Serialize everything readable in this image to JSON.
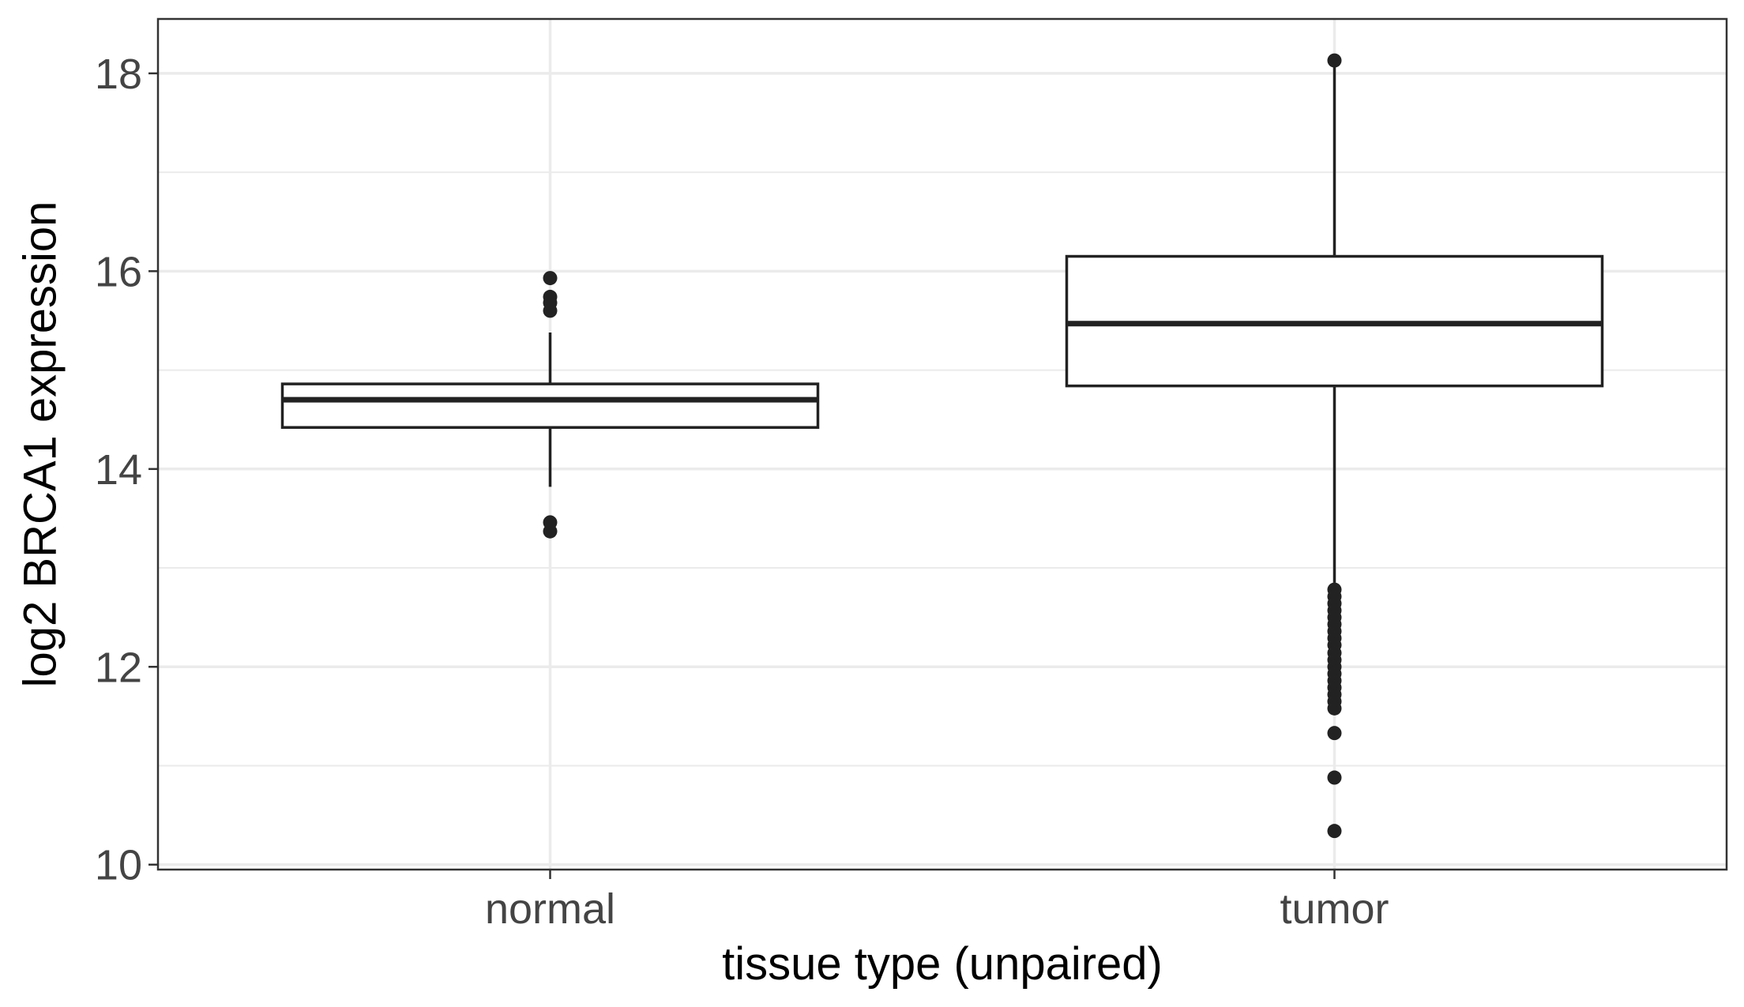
{
  "chart_data": {
    "type": "box",
    "title": "",
    "xlabel": "tissue type (unpaired)",
    "ylabel": "log2 BRCA1 expression",
    "ylim": [
      9.95,
      18.55
    ],
    "y_ticks": [
      10,
      12,
      14,
      16,
      18
    ],
    "y_minor_ticks": [
      11,
      13,
      15,
      17
    ],
    "grid": true,
    "legend": "none",
    "colors": {
      "box_stroke": "#222222",
      "outlier": "#222222",
      "grid": "#ebebeb",
      "panel_border": "#333333",
      "background": "#ffffff"
    },
    "categories": [
      "normal",
      "tumor"
    ],
    "boxes": [
      {
        "category": "normal",
        "whisker_low": 13.82,
        "q1": 14.42,
        "median": 14.7,
        "q3": 14.86,
        "whisker_high": 15.38,
        "outliers": [
          15.93,
          15.74,
          15.68,
          15.6,
          13.46,
          13.37
        ]
      },
      {
        "category": "tumor",
        "whisker_low": 12.85,
        "q1": 14.84,
        "median": 15.47,
        "q3": 16.15,
        "whisker_high": 18.1,
        "outliers": [
          18.13,
          12.78,
          12.71,
          12.64,
          12.57,
          12.5,
          12.43,
          12.36,
          12.29,
          12.22,
          12.14,
          12.07,
          12.0,
          11.93,
          11.86,
          11.79,
          11.72,
          11.65,
          11.58,
          11.33,
          10.88,
          10.34
        ]
      }
    ]
  }
}
